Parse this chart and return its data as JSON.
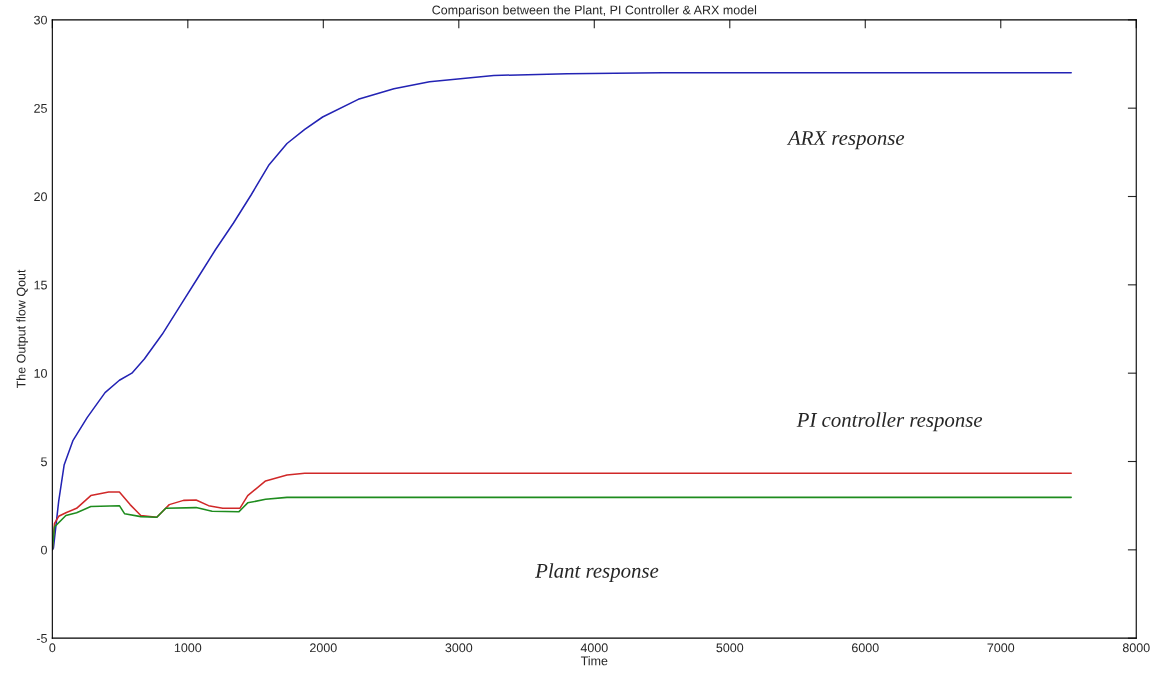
{
  "chart_data": {
    "type": "line",
    "title": "Comparison between the Plant, PI Controller & ARX model",
    "xlabel": "Time",
    "ylabel": "The Output flow Qout",
    "xlim": [
      0,
      8000
    ],
    "xticks": [
      0,
      1000,
      2000,
      3000,
      4000,
      5000,
      6000,
      7000,
      8000
    ],
    "ylim": [
      -5,
      30
    ],
    "yticks": [
      -5,
      0,
      5,
      10,
      15,
      20,
      25,
      30
    ],
    "grid": false,
    "legend": false,
    "series": [
      {
        "color": "#2323b4",
        "x": [
          0,
          8,
          47,
          87,
          153,
          258,
          389,
          495,
          587,
          679,
          811,
          942,
          1074,
          1205,
          1337,
          1468,
          1600,
          1732,
          1863,
          1995,
          2258,
          2521,
          2784,
          3258,
          3800,
          4500,
          7520
        ],
        "values": [
          0,
          0.1,
          2.76,
          4.8,
          6.2,
          7.5,
          8.9,
          9.6,
          10.0,
          10.8,
          12.2,
          13.8,
          15.4,
          17.0,
          18.5,
          20.1,
          21.8,
          23.0,
          23.8,
          24.5,
          25.5,
          26.1,
          26.5,
          26.85,
          26.95,
          27.0,
          27.0
        ]
      },
      {
        "color": "#d02828",
        "x": [
          0,
          16,
          47,
          100,
          179,
          284,
          416,
          495,
          574,
          653,
          771,
          863,
          968,
          1061,
          1153,
          1258,
          1384,
          1442,
          1574,
          1732,
          1863,
          7520
        ],
        "values": [
          0,
          1.5,
          1.9,
          2.1,
          2.35,
          3.07,
          3.27,
          3.27,
          2.56,
          1.94,
          1.84,
          2.56,
          2.8,
          2.82,
          2.5,
          2.35,
          2.35,
          3.07,
          3.9,
          4.23,
          4.34,
          4.34
        ]
      },
      {
        "color": "#1e8c1e",
        "x": [
          0,
          16,
          100,
          179,
          284,
          495,
          534,
          653,
          771,
          837,
          1061,
          1179,
          1376,
          1442,
          1574,
          1732,
          7520
        ],
        "values": [
          0,
          1.3,
          1.94,
          2.1,
          2.45,
          2.5,
          2.04,
          1.88,
          1.84,
          2.35,
          2.39,
          2.19,
          2.15,
          2.66,
          2.86,
          2.97,
          2.97
        ]
      }
    ],
    "annotations": [
      "ARX response",
      "PI controller response",
      "Plant response"
    ]
  }
}
